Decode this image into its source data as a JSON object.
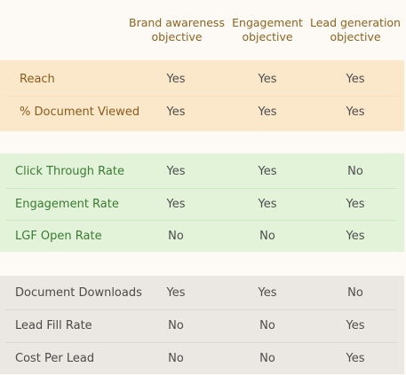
{
  "header": {
    "columns": [
      {
        "line1": "Brand awareness",
        "line2": "objective"
      },
      {
        "line1": "Engagement",
        "line2": "objective"
      },
      {
        "line1": "Lead generation",
        "line2": "objective"
      }
    ]
  },
  "groups": [
    {
      "rows": [
        {
          "label": "Reach",
          "values": [
            "Yes",
            "Yes",
            "Yes"
          ]
        },
        {
          "label": "% Document Viewed",
          "values": [
            "Yes",
            "Yes",
            "Yes"
          ]
        }
      ]
    },
    {
      "rows": [
        {
          "label": "Click Through Rate",
          "values": [
            "Yes",
            "Yes",
            "No"
          ]
        },
        {
          "label": "Engagement Rate",
          "values": [
            "Yes",
            "Yes",
            "Yes"
          ]
        },
        {
          "label": "LGF Open Rate",
          "values": [
            "No",
            "No",
            "Yes"
          ]
        }
      ]
    },
    {
      "rows": [
        {
          "label": "Document Downloads",
          "values": [
            "Yes",
            "Yes",
            "No"
          ]
        },
        {
          "label": "Lead Fill Rate",
          "values": [
            "No",
            "No",
            "Yes"
          ]
        },
        {
          "label": "Cost Per Lead",
          "values": [
            "No",
            "No",
            "Yes"
          ]
        }
      ]
    }
  ]
}
